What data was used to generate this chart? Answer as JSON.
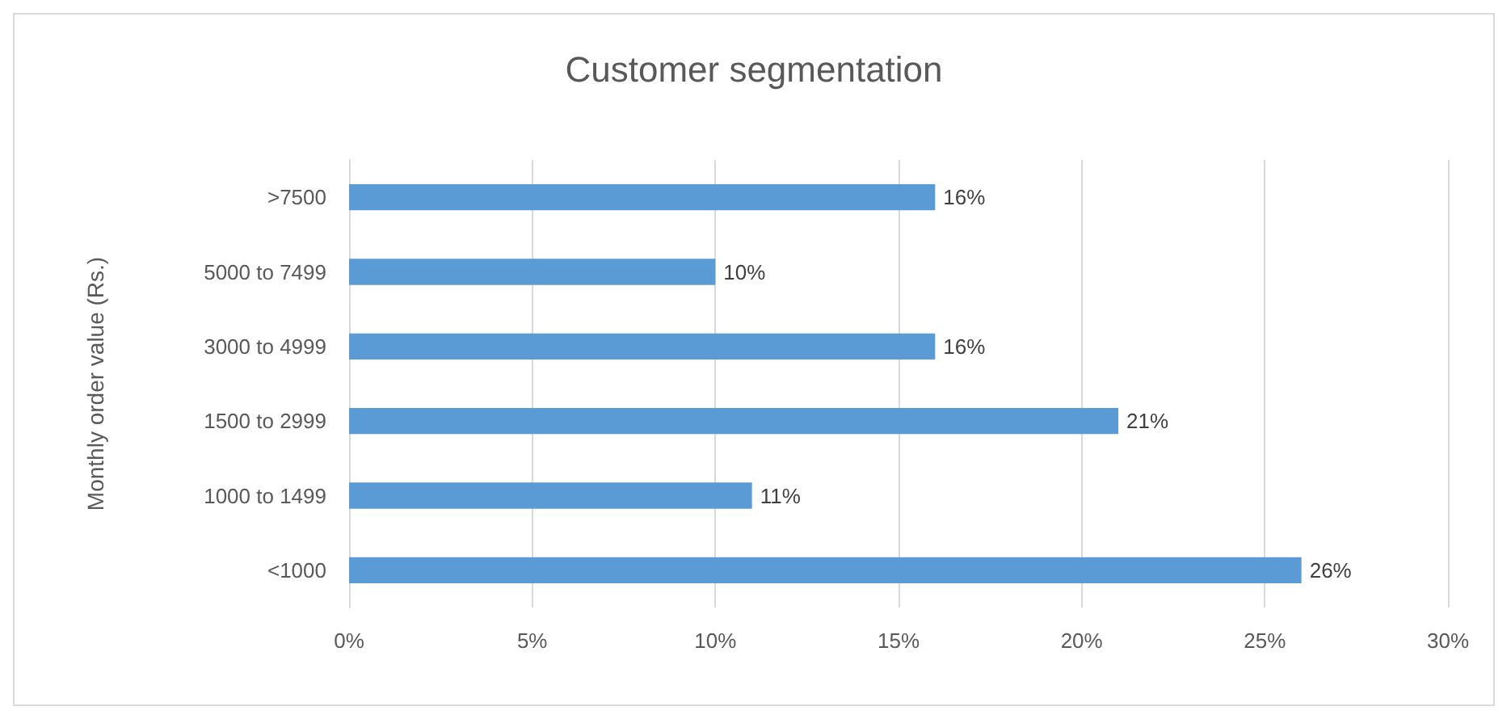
{
  "chart_data": {
    "type": "bar",
    "orientation": "horizontal",
    "title": "Customer segmentation",
    "ylabel": "Monthly order value (Rs.)",
    "categories": [
      ">7500",
      "5000 to 7499",
      "3000 to 4999",
      "1500 to 2999",
      "1000 to 1499",
      "<1000"
    ],
    "values": [
      16,
      10,
      16,
      21,
      11,
      26
    ],
    "value_labels": [
      "16%",
      "10%",
      "16%",
      "21%",
      "11%",
      "26%"
    ],
    "color": "#5b9bd5",
    "xlim": [
      0,
      30
    ],
    "xticks": [
      {
        "value": 0,
        "label": "0%"
      },
      {
        "value": 5,
        "label": "5%"
      },
      {
        "value": 10,
        "label": "10%"
      },
      {
        "value": 15,
        "label": "15%"
      },
      {
        "value": 20,
        "label": "20%"
      },
      {
        "value": 25,
        "label": "25%"
      },
      {
        "value": 30,
        "label": "30%"
      }
    ],
    "grid": "x"
  }
}
